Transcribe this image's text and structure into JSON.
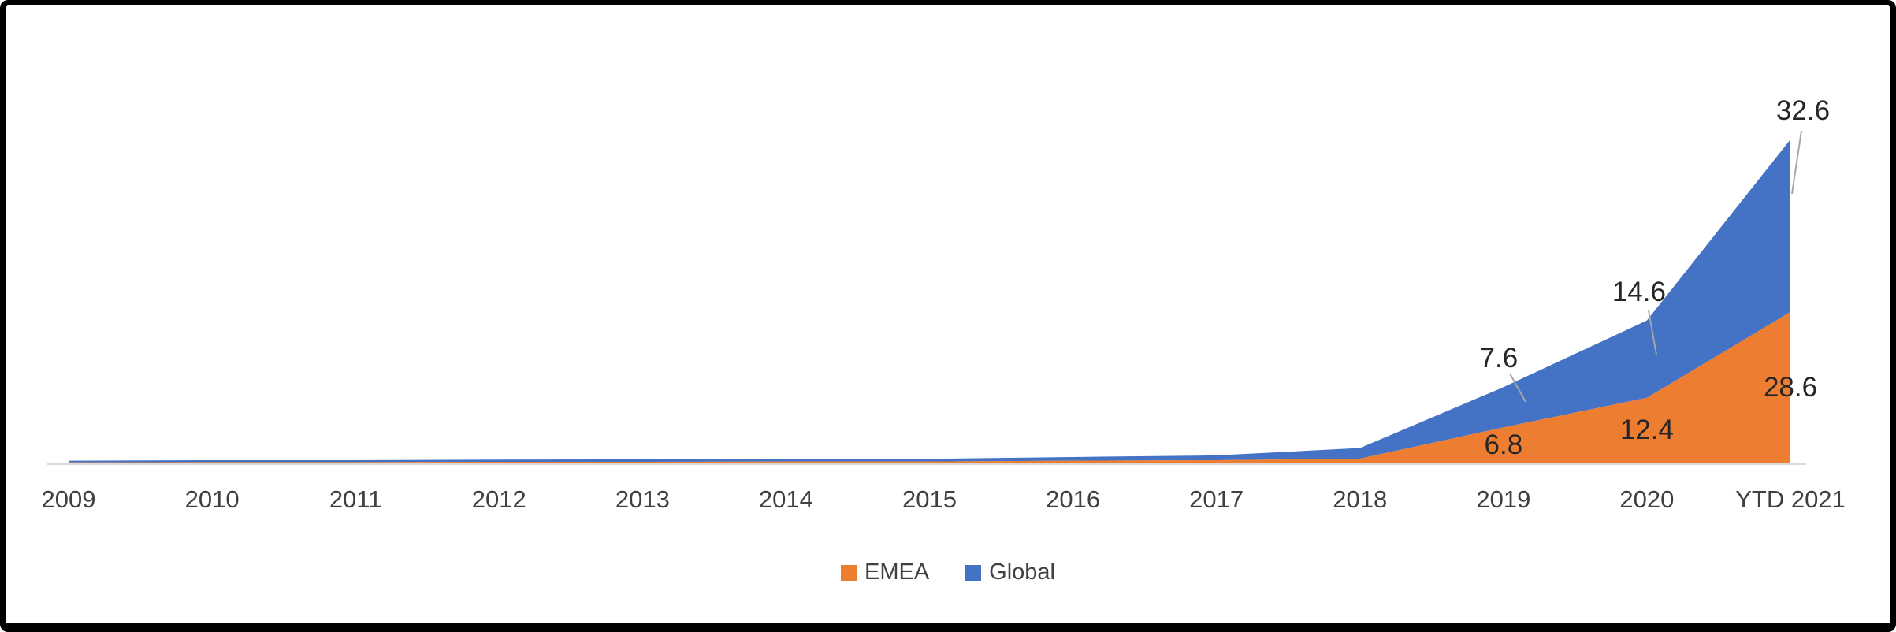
{
  "chart_data": {
    "type": "area",
    "stacked": true,
    "title": "",
    "xlabel": "",
    "ylabel": "",
    "grid": false,
    "y_axis_visible": false,
    "categories": [
      "2009",
      "2010",
      "2011",
      "2012",
      "2013",
      "2014",
      "2015",
      "2016",
      "2017",
      "2018",
      "2019",
      "2020",
      "YTD 2021"
    ],
    "series": [
      {
        "name": "EMEA",
        "color": "#ED7D31",
        "values": [
          0.2,
          0.25,
          0.25,
          0.3,
          0.3,
          0.35,
          0.35,
          0.5,
          0.6,
          0.9,
          6.8,
          12.4,
          28.6
        ]
      },
      {
        "name": "Global",
        "color": "#4472C4",
        "values": [
          0.3,
          0.35,
          0.35,
          0.4,
          0.45,
          0.5,
          0.5,
          0.7,
          0.9,
          2.0,
          7.6,
          14.6,
          32.6
        ]
      }
    ],
    "data_labels": [
      {
        "text": "6.8",
        "series": "EMEA",
        "category": "2019"
      },
      {
        "text": "12.4",
        "series": "EMEA",
        "category": "2020"
      },
      {
        "text": "28.6",
        "series": "EMEA",
        "category": "YTD 2021"
      },
      {
        "text": "7.6",
        "series": "Global",
        "category": "2019"
      },
      {
        "text": "14.6",
        "series": "Global",
        "category": "2020"
      },
      {
        "text": "32.6",
        "series": "Global",
        "category": "YTD 2021"
      }
    ],
    "legend": {
      "position": "bottom",
      "entries": [
        {
          "label": "EMEA",
          "color": "#ED7D31"
        },
        {
          "label": "Global",
          "color": "#4472C4"
        }
      ]
    },
    "colors": {
      "label_text": "#262626",
      "axis_text": "#404040",
      "leader_line": "#A6A6A6",
      "axis_line": "#D9D9D9",
      "background": "#FFFFFF",
      "frame": "#000000"
    }
  }
}
